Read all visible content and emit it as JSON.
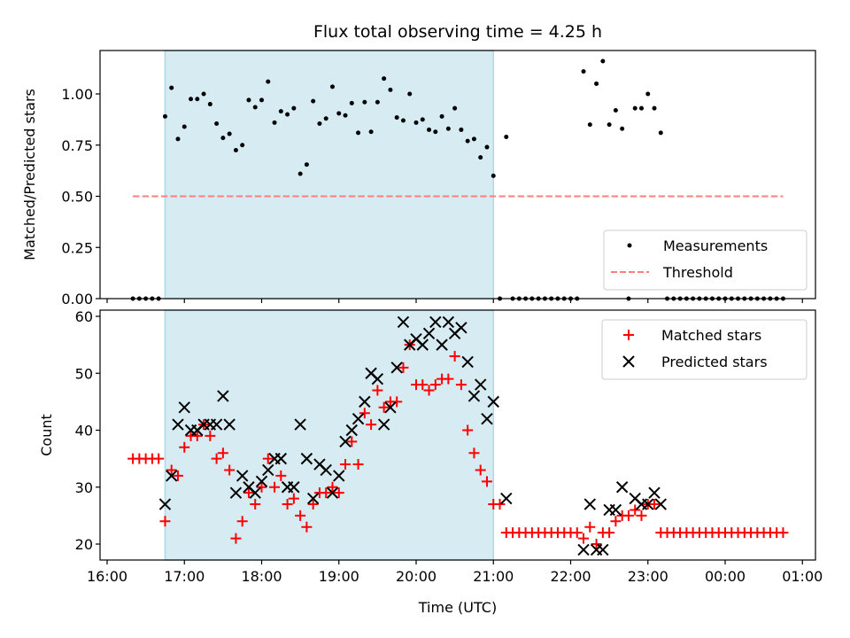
{
  "chart_data": [
    {
      "type": "scatter",
      "title": "Flux total observing time = 4.25 h",
      "xlabel": "",
      "ylabel": "Matched/Predicted stars",
      "ylim": [
        0,
        1.21
      ],
      "yticks": [
        "0.00",
        "0.25",
        "0.50",
        "0.75",
        "1.00"
      ],
      "shaded_window": {
        "start": "16:45",
        "end": "21:00",
        "color": "#add8e6"
      },
      "threshold": 0.5,
      "legend": {
        "placement": "lower-right",
        "entries": [
          "Measurements",
          "Threshold"
        ]
      },
      "colors": {
        "measurements": "#000000",
        "threshold": "#ff7f7f"
      }
    },
    {
      "type": "scatter",
      "xlabel": "Time (UTC)",
      "ylabel": "Count",
      "ylim": [
        17.2,
        61.1
      ],
      "yticks": [
        "20",
        "30",
        "40",
        "50",
        "60"
      ],
      "xticks": [
        "16:00",
        "17:00",
        "18:00",
        "19:00",
        "20:00",
        "21:00",
        "22:00",
        "23:00",
        "00:00",
        "01:00"
      ],
      "legend": {
        "placement": "upper-right",
        "entries": [
          "Matched stars",
          "Predicted stars"
        ]
      },
      "colors": {
        "matched": "#ff0000",
        "predicted": "#000000"
      }
    }
  ],
  "series": {
    "time_start": "16:20",
    "time_step_minutes": 5,
    "matched": [
      35,
      35,
      35,
      35,
      35,
      24,
      33,
      32,
      37,
      39,
      39,
      41,
      39,
      35,
      36,
      33,
      21,
      24,
      29,
      27,
      30,
      35,
      30,
      32,
      27,
      28,
      25,
      23,
      27,
      29,
      29,
      30,
      29,
      34,
      38,
      34,
      43,
      41,
      47,
      44,
      45,
      45,
      51,
      55,
      48,
      48,
      47,
      48,
      49,
      49,
      53,
      48,
      40,
      36,
      33,
      31,
      27,
      27,
      22,
      22,
      22,
      22,
      22,
      22,
      22,
      22,
      22,
      22,
      22,
      22,
      21,
      23,
      20,
      22,
      22,
      24,
      25,
      25,
      26,
      25,
      27,
      27,
      22,
      22,
      22,
      22,
      22,
      22,
      22,
      22,
      22,
      22,
      22,
      22,
      22,
      22,
      22,
      22,
      22,
      22,
      22,
      22
    ],
    "predicted": [
      null,
      null,
      null,
      null,
      null,
      27,
      32,
      41,
      44,
      40,
      40,
      41,
      41,
      41,
      46,
      41,
      29,
      32,
      30,
      29,
      31,
      33,
      35,
      35,
      30,
      30,
      41,
      35,
      28,
      34,
      33,
      29,
      32,
      38,
      40,
      42,
      45,
      50,
      49,
      41,
      44,
      51,
      59,
      55,
      56,
      55,
      57,
      59,
      55,
      59,
      57,
      58,
      52,
      46,
      48,
      42,
      45,
      null,
      28,
      null,
      null,
      null,
      null,
      null,
      null,
      null,
      null,
      null,
      null,
      null,
      19,
      27,
      19,
      19,
      26,
      26,
      30,
      null,
      28,
      27,
      27,
      29,
      27,
      null,
      null,
      null,
      null,
      null,
      null,
      null,
      null,
      null,
      null,
      null,
      null,
      null,
      null,
      null,
      null,
      null,
      null,
      null
    ],
    "ratio": [
      0,
      0,
      0,
      0,
      0,
      0.89,
      1.03,
      0.78,
      0.84,
      0.975,
      0.975,
      1.0,
      0.95,
      0.855,
      0.785,
      0.805,
      0.725,
      0.75,
      0.97,
      0.935,
      0.97,
      1.06,
      0.86,
      0.915,
      0.9,
      0.93,
      0.61,
      0.655,
      0.965,
      0.855,
      0.88,
      1.035,
      0.905,
      0.895,
      0.955,
      0.81,
      0.96,
      0.815,
      0.96,
      1.075,
      1.02,
      0.885,
      0.87,
      1.0,
      0.86,
      0.875,
      0.825,
      0.815,
      0.89,
      0.83,
      0.93,
      0.825,
      0.77,
      0.78,
      0.69,
      0.74,
      0.6,
      0,
      0.79,
      0,
      0,
      0,
      0,
      0,
      0,
      0,
      0,
      0,
      0,
      0,
      1.11,
      0.85,
      1.05,
      1.16,
      0.85,
      0.92,
      0.83,
      0,
      0.93,
      0.93,
      1.0,
      0.93,
      0.81,
      0,
      0,
      0,
      0,
      0,
      0,
      0,
      0,
      0,
      0,
      0,
      0,
      0,
      0,
      0,
      0,
      0,
      0,
      0
    ]
  }
}
